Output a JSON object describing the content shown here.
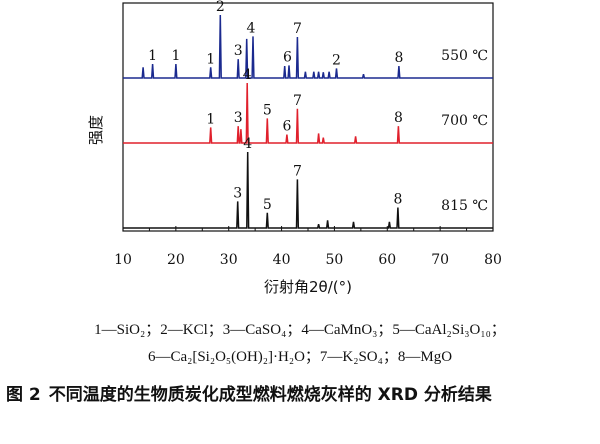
{
  "chart_data": {
    "type": "line",
    "xlabel": "衍射角2θ/(°)",
    "ylabel": "强度",
    "xlim": [
      10,
      80
    ],
    "xticks": [
      "10",
      "20",
      "30",
      "40",
      "50",
      "60",
      "70",
      "80"
    ],
    "grid": false,
    "series": [
      {
        "name": "550 ℃",
        "color": "#1b2a8f",
        "peaks": [
          [
            13.8,
            0.17
          ],
          [
            15.6,
            0.22
          ],
          [
            20.0,
            0.22
          ],
          [
            26.6,
            0.17
          ],
          [
            28.4,
            1.0
          ],
          [
            31.8,
            0.3
          ],
          [
            33.4,
            0.62
          ],
          [
            34.6,
            0.66
          ],
          [
            40.6,
            0.19
          ],
          [
            41.4,
            0.2
          ],
          [
            43.0,
            0.65
          ],
          [
            44.5,
            0.1
          ],
          [
            46.1,
            0.1
          ],
          [
            47.0,
            0.1
          ],
          [
            47.9,
            0.09
          ],
          [
            49.0,
            0.1
          ],
          [
            50.4,
            0.15
          ],
          [
            55.5,
            0.06
          ],
          [
            62.2,
            0.19
          ]
        ],
        "labels": [
          [
            "1",
            15.6,
            0.22
          ],
          [
            "1",
            20.0,
            0.22
          ],
          [
            "1",
            26.6,
            0.17
          ],
          [
            "2",
            28.4,
            1.0
          ],
          [
            "3",
            31.8,
            0.3
          ],
          [
            "4",
            34.2,
            0.66
          ],
          [
            "6",
            41.1,
            0.2
          ],
          [
            "7",
            43.0,
            0.65
          ],
          [
            "2",
            50.4,
            0.15
          ],
          [
            "8",
            62.2,
            0.19
          ]
        ]
      },
      {
        "name": "700 ℃",
        "color": "#e0202c",
        "peaks": [
          [
            26.6,
            0.26
          ],
          [
            31.8,
            0.28
          ],
          [
            32.3,
            0.23
          ],
          [
            33.5,
            1.0
          ],
          [
            37.3,
            0.41
          ],
          [
            41.0,
            0.14
          ],
          [
            43.0,
            0.57
          ],
          [
            47.0,
            0.16
          ],
          [
            47.9,
            0.09
          ],
          [
            54.0,
            0.11
          ],
          [
            62.1,
            0.28
          ]
        ],
        "labels": [
          [
            "1",
            26.6,
            0.26
          ],
          [
            "3",
            31.8,
            0.28
          ],
          [
            "4",
            33.5,
            1.0
          ],
          [
            "5",
            37.3,
            0.41
          ],
          [
            "6",
            41.0,
            0.14
          ],
          [
            "7",
            43.0,
            0.57
          ],
          [
            "8",
            62.1,
            0.28
          ]
        ]
      },
      {
        "name": "815 ℃",
        "color": "#111111",
        "peaks": [
          [
            31.7,
            0.35
          ],
          [
            33.6,
            1.0
          ],
          [
            37.3,
            0.2
          ],
          [
            43.0,
            0.64
          ],
          [
            47.0,
            0.05
          ],
          [
            48.7,
            0.1
          ],
          [
            53.6,
            0.08
          ],
          [
            60.4,
            0.08
          ],
          [
            62.0,
            0.27
          ]
        ],
        "labels": [
          [
            "3",
            31.7,
            0.35
          ],
          [
            "4",
            33.6,
            1.0
          ],
          [
            "5",
            37.3,
            0.2
          ],
          [
            "7",
            43.0,
            0.64
          ],
          [
            "8",
            62.0,
            0.27
          ]
        ]
      }
    ]
  },
  "legend": {
    "line1": "1—SiO₂；2—KCl；3—CaSO₄；4—CaMnO₃；5—CaAl₂Si₃O₁₀；",
    "line2": "6—Ca₂[Si₂O₅(OH)₂]·H₂O；7—K₂SO₄；8—MgO"
  },
  "caption": {
    "number": "图 2",
    "text": "不同温度的生物质炭化成型燃料燃烧灰样的 XRD 分析结果"
  }
}
